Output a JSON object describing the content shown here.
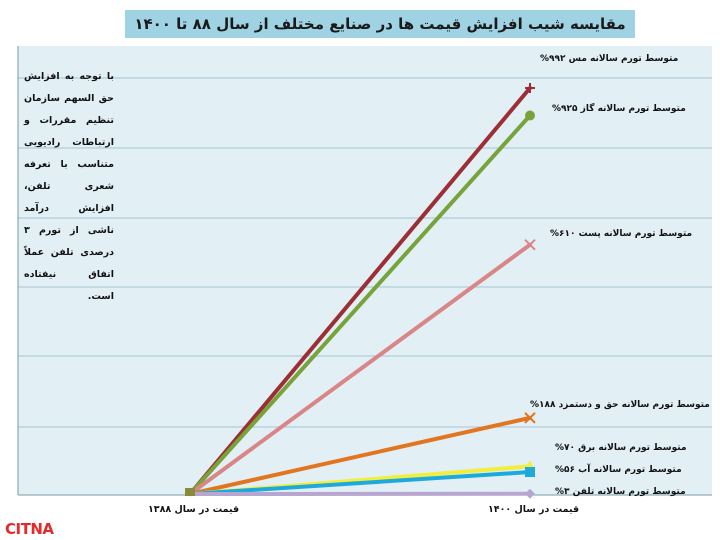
{
  "chart_data": {
    "type": "line",
    "title": "مقایسه شیب افزایش قیمت ها در صنایع مختلف از سال ۸۸ تا ۱۴۰۰",
    "categories": [
      "قیمت در سال ۱۳۸۸",
      "قیمت در سال ۱۴۰۰"
    ],
    "note": "با توجه به افزایش حق السهم سازمان تنظیم مقررات و ارتباطات رادیویی متناسب با تعرفه شعری تلفن، افزایش درآمد ناشی از تورم ۳ درصدی تلفن عملاً اتفاق نیفتاده است.",
    "series": [
      {
        "name": "متوسط تورم سالانه مس ۹۹۲%",
        "values": [
          1,
          10.92
        ],
        "color": "#9b2f35",
        "marker": "cross"
      },
      {
        "name": "متوسط تورم سالانه گاز ۹۲۵%",
        "values": [
          1,
          10.25
        ],
        "color": "#77a33a",
        "marker": "circle"
      },
      {
        "name": "متوسط تورم سالانه پست ۶۱۰%",
        "values": [
          1,
          7.1
        ],
        "color": "#d88686",
        "marker": "x"
      },
      {
        "name": "متوسط تورم سالانه حق و دستمزد ۱۸۸%",
        "values": [
          1,
          2.88
        ],
        "color": "#e27520",
        "marker": "x"
      },
      {
        "name": "متوسط تورم سالانه برق ۷۰%",
        "values": [
          1,
          1.7
        ],
        "color": "#f2ee3e",
        "marker": "triangle"
      },
      {
        "name": "متوسط تورم سالانه آب ۵۶%",
        "values": [
          1,
          1.56
        ],
        "color": "#1ea9dc",
        "marker": "square"
      },
      {
        "name": "متوسط تورم سالانه تلفن ۳%",
        "values": [
          1,
          1.03
        ],
        "color": "#b7a6cf",
        "marker": "diamond"
      }
    ],
    "ylim": [
      1,
      11.5
    ],
    "grid": true,
    "plot_background": "#e2eff5",
    "grid_color": "#8fb7c9"
  },
  "brand": "CITNA"
}
